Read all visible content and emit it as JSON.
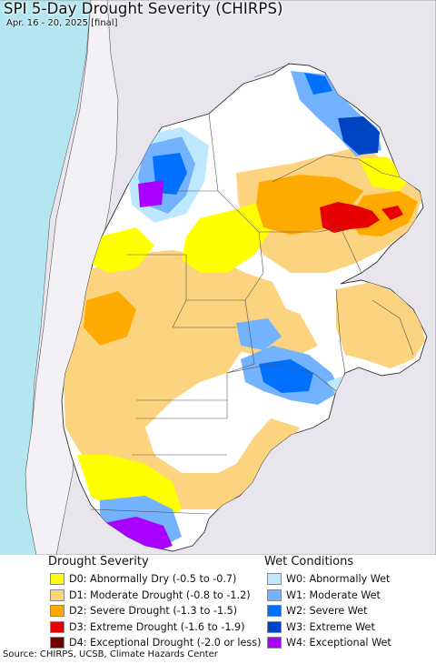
{
  "title": "SPI 5-Day Drought Severity (CHIRPS)",
  "subtitle": "Apr. 16 - 20, 2025 [final]",
  "legend": {
    "drought_header": "Drought Severity",
    "wet_header": "Wet Conditions",
    "drought": [
      {
        "label": "D0: Abnormally Dry (-0.5 to -0.7)",
        "color": "#ffff00"
      },
      {
        "label": "D1: Moderate Drought (-0.8 to -1.2)",
        "color": "#fcd37f"
      },
      {
        "label": "D2: Severe Drought (-1.3 to -1.5)",
        "color": "#ffaa00"
      },
      {
        "label": "D3: Extreme Drought (-1.6 to -1.9)",
        "color": "#e60000"
      },
      {
        "label": "D4: Exceptional Drought (-2.0 or less)",
        "color": "#730000"
      }
    ],
    "wet": [
      {
        "label": "W0: Abnormally Wet",
        "color": "#bee8ff"
      },
      {
        "label": "W1: Moderate Wet",
        "color": "#73b2ff"
      },
      {
        "label": "W2: Severe Wet",
        "color": "#0070ff"
      },
      {
        "label": "W3: Extreme Wet",
        "color": "#0044c4"
      },
      {
        "label": "W4: Exceptional Wet",
        "color": "#aa00ff"
      }
    ]
  },
  "map": {
    "ocean_color": "#b4e6f2",
    "land_color": "#e8e6ec",
    "border_color": "#555555"
  },
  "source": "Source: CHIRPS, UCSB, Climate Hazards Center"
}
